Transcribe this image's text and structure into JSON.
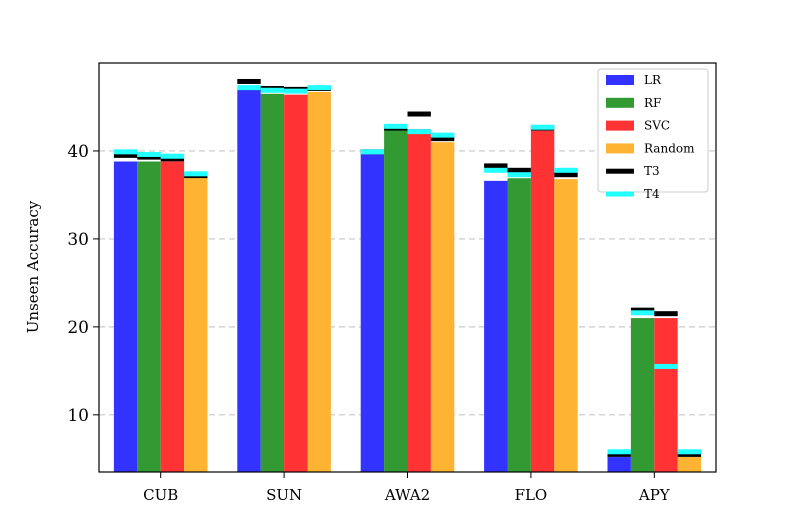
{
  "chart_data": {
    "type": "bar",
    "title": "",
    "xlabel": "",
    "ylabel": "Unseen Accuracy",
    "ylim": [
      3.5,
      50
    ],
    "yticks": [
      10,
      20,
      30,
      40
    ],
    "grid": "horizontal-dashed",
    "legend_position": "top-right",
    "categories": [
      "CUB",
      "SUN",
      "AWA2",
      "FLO",
      "APY"
    ],
    "series": [
      {
        "name": "LR",
        "color": "#3333ff",
        "values": [
          38.8,
          47.0,
          39.6,
          36.6,
          5.2
        ],
        "t3": [
          39.5,
          47.9,
          39.9,
          38.3,
          5.5
        ],
        "t4": [
          39.9,
          47.2,
          39.9,
          37.8,
          5.8
        ]
      },
      {
        "name": "RF",
        "color": "#339933",
        "values": [
          38.8,
          46.5,
          42.4,
          36.9,
          21.0
        ],
        "t3": [
          39.3,
          47.1,
          42.6,
          37.8,
          21.9
        ],
        "t4": [
          39.6,
          46.9,
          42.8,
          37.3,
          21.6
        ]
      },
      {
        "name": "SVC",
        "color": "#ff3333",
        "values": [
          38.8,
          46.4,
          42.5,
          42.3,
          21.0
        ],
        "t3": [
          39.1,
          47.0,
          44.2,
          42.6,
          21.5
        ],
        "t4": [
          39.4,
          46.8,
          42.2,
          42.7,
          15.5
        ]
      },
      {
        "name": "Random",
        "color": "#ffb333",
        "values": [
          37.0,
          46.7,
          41.0,
          36.8,
          5.2
        ],
        "t3": [
          37.2,
          47.1,
          41.4,
          37.3,
          5.5
        ],
        "t4": [
          37.4,
          47.2,
          41.8,
          37.8,
          5.8
        ]
      }
    ],
    "markers": [
      {
        "name": "T3",
        "color": "#000000"
      },
      {
        "name": "T4",
        "color": "#22ffff"
      }
    ]
  }
}
